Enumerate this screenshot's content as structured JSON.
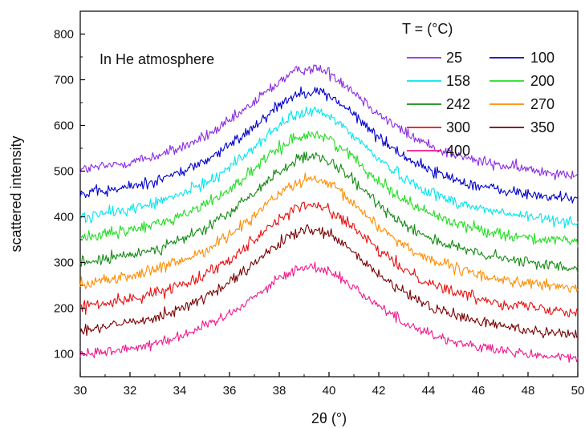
{
  "chart_data": {
    "type": "line",
    "title": "",
    "xlabel": "2θ (°)",
    "ylabel": "scattered intensity",
    "xlim": [
      30,
      50
    ],
    "ylim": [
      50,
      850
    ],
    "xticks": [
      30,
      32,
      34,
      36,
      38,
      40,
      42,
      44,
      46,
      48,
      50
    ],
    "yticks": [
      100,
      200,
      300,
      400,
      500,
      600,
      700,
      800
    ],
    "grid": false,
    "annotation": "In He atmosphere",
    "legend": {
      "title": "T = (°C)",
      "placement": "top-right",
      "columns": 2
    },
    "series_shape": {
      "peak_x": 39.3,
      "peak_width_left": 3.6,
      "peak_width_right": 3.4
    },
    "series": [
      {
        "name": "25",
        "color": "#8b2be2",
        "baseline": 470,
        "peak": 725,
        "noise": 12
      },
      {
        "name": "100",
        "color": "#0000cc",
        "baseline": 415,
        "peak": 675,
        "noise": 12
      },
      {
        "name": "158",
        "color": "#00e5ee",
        "baseline": 365,
        "peak": 630,
        "noise": 12
      },
      {
        "name": "200",
        "color": "#22dd22",
        "baseline": 320,
        "peak": 580,
        "noise": 12
      },
      {
        "name": "242",
        "color": "#138a13",
        "baseline": 265,
        "peak": 530,
        "noise": 12
      },
      {
        "name": "270",
        "color": "#ff8c00",
        "baseline": 220,
        "peak": 480,
        "noise": 12
      },
      {
        "name": "300",
        "color": "#e81010",
        "baseline": 170,
        "peak": 425,
        "noise": 12
      },
      {
        "name": "350",
        "color": "#7a0000",
        "baseline": 120,
        "peak": 370,
        "noise": 12
      },
      {
        "name": "400",
        "color": "#ee1a8c",
        "baseline": 70,
        "peak": 290,
        "noise": 11
      }
    ]
  }
}
